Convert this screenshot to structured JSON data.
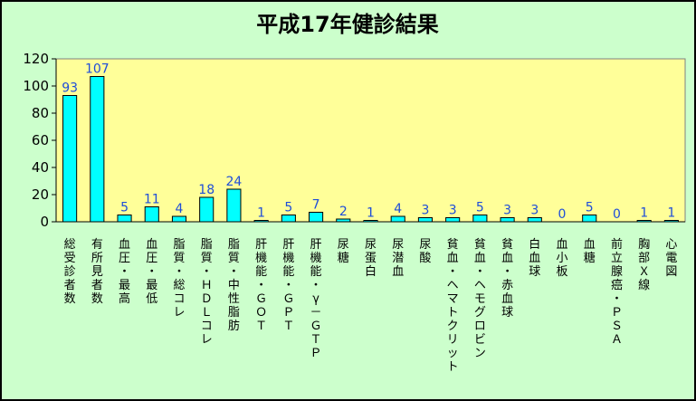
{
  "chart_data": {
    "type": "bar",
    "title": "平成17年健診結果",
    "categories": [
      "総受診者数",
      "有所見者数",
      "血圧・最高",
      "血圧・最低",
      "脂質・総コレ",
      "脂質・ＨＤＬコレ",
      "脂質・中性脂肪",
      "肝機能・ＧＯＴ",
      "肝機能・ＧＰＴ",
      "肝機能・γ－ＧＴＰ",
      "尿糖",
      "尿蛋白",
      "尿潜血",
      "尿酸",
      "貧血・ヘマトクリット",
      "貧血・ヘモグロビン",
      "貧血・赤血球",
      "白血球",
      "血小板",
      "血糖",
      "前立腺癌・ＰＳＡ",
      "胸部Ｘ線",
      "心電図"
    ],
    "values": [
      93,
      107,
      5,
      11,
      4,
      18,
      24,
      1,
      5,
      7,
      2,
      1,
      4,
      3,
      3,
      5,
      3,
      3,
      0,
      5,
      0,
      1,
      1
    ],
    "ylim": [
      0,
      120
    ],
    "yticks": [
      0,
      20,
      40,
      60,
      80,
      100,
      120
    ],
    "grid": false,
    "legend": "none",
    "colors": {
      "background": "#ccffcc",
      "plot_area": "#ffff99",
      "bar_fill": "#00ffff",
      "bar_stroke": "#000000",
      "data_label": "#1f4ed8"
    }
  }
}
